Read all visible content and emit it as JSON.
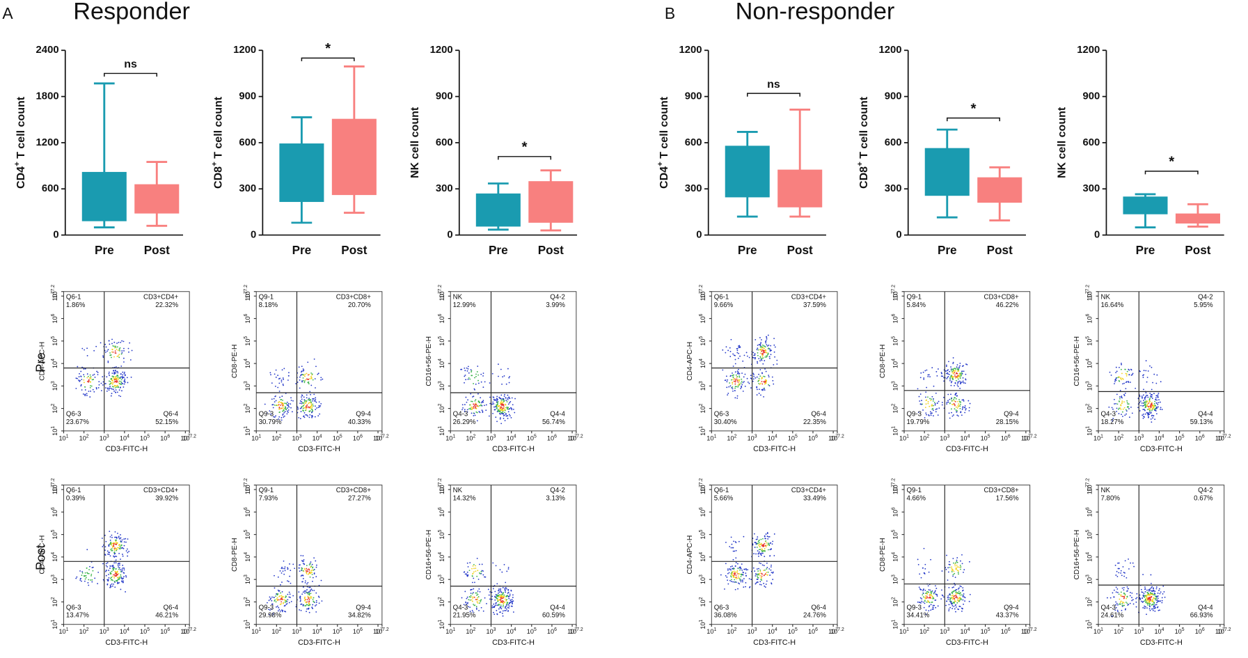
{
  "row_labels": [
    "Pre",
    "Post"
  ],
  "panels": [
    {
      "label": "A",
      "title": "Responder",
      "charts": [
        {
          "type": "box",
          "ylabel": {
            "main": "CD4",
            "sup": "+",
            "rest": " T cell count"
          },
          "ylim": [
            0,
            2400
          ],
          "yticks": [
            0,
            600,
            1200,
            1800,
            2400
          ],
          "categories": [
            "Pre",
            "Post"
          ],
          "boxes": [
            {
              "color": "#1a9bb0",
              "min": 100,
              "q1": 180,
              "q3": 820,
              "max": 1970
            },
            {
              "color": "#f8807f",
              "min": 120,
              "q1": 280,
              "q3": 660,
              "max": 950
            }
          ],
          "significance": {
            "label": "ns",
            "y": 2100
          }
        },
        {
          "type": "box",
          "ylabel": {
            "main": "CD8",
            "sup": "+",
            "rest": " T cell count"
          },
          "ylim": [
            0,
            1200
          ],
          "yticks": [
            0,
            300,
            600,
            900,
            1200
          ],
          "categories": [
            "Pre",
            "Post"
          ],
          "boxes": [
            {
              "color": "#1a9bb0",
              "min": 80,
              "q1": 215,
              "q3": 595,
              "max": 765
            },
            {
              "color": "#f8807f",
              "min": 145,
              "q1": 260,
              "q3": 755,
              "max": 1095
            }
          ],
          "significance": {
            "label": "*",
            "y": 1150
          }
        },
        {
          "type": "box",
          "ylabel": {
            "main": "NK cell count",
            "sup": "",
            "rest": ""
          },
          "ylim": [
            0,
            1200
          ],
          "yticks": [
            0,
            300,
            600,
            900,
            1200
          ],
          "categories": [
            "Pre",
            "Post"
          ],
          "boxes": [
            {
              "color": "#1a9bb0",
              "min": 35,
              "q1": 55,
              "q3": 270,
              "max": 335
            },
            {
              "color": "#f8807f",
              "min": 30,
              "q1": 80,
              "q3": 350,
              "max": 420
            }
          ],
          "significance": {
            "label": "*",
            "y": 510
          }
        }
      ],
      "flow": [
        [
          {
            "xlabel": "CD3-FITC-H",
            "ylabel": "CD4-APC-H",
            "xlim": [
              1,
              7.2
            ],
            "ylim": [
              1,
              7.2
            ],
            "ticks": [
              1,
              2,
              3,
              4,
              5,
              6,
              7,
              7.2
            ],
            "tick_base": "10",
            "gate": [
              3,
              3.8
            ],
            "quadrants": [
              {
                "name": "Q6-1",
                "value": 1.86,
                "label": "1.86%"
              },
              {
                "name": "CD3+CD4+",
                "value": 22.32,
                "label": "22.32%"
              },
              {
                "name": "Q6-3",
                "value": 23.67,
                "label": "23.67%"
              },
              {
                "name": "Q6-4",
                "value": 52.15,
                "label": "52.15%"
              }
            ]
          },
          {
            "xlabel": "CD3-FITC-H",
            "ylabel": "CD8-PE-H",
            "xlim": [
              1,
              7.2
            ],
            "ylim": [
              1,
              7.2
            ],
            "ticks": [
              1,
              2,
              3,
              4,
              5,
              6,
              7,
              7.2
            ],
            "tick_base": "10",
            "gate": [
              3,
              2.7
            ],
            "quadrants": [
              {
                "name": "Q9-1",
                "value": 8.18,
                "label": "8.18%"
              },
              {
                "name": "CD3+CD8+",
                "value": 20.7,
                "label": "20.70%"
              },
              {
                "name": "Q9-3",
                "value": 30.79,
                "label": "30.79%"
              },
              {
                "name": "Q9-4",
                "value": 40.33,
                "label": "40.33%"
              }
            ]
          },
          {
            "xlabel": "CD3-FITC-H",
            "ylabel": "CD16+56-PE-H",
            "xlim": [
              1,
              7.2
            ],
            "ylim": [
              1,
              7.2
            ],
            "ticks": [
              1,
              2,
              3,
              4,
              5,
              6,
              7,
              7.2
            ],
            "tick_base": "10",
            "gate": [
              3,
              2.7
            ],
            "quadrants": [
              {
                "name": "NK",
                "value": 12.99,
                "label": "12.99%"
              },
              {
                "name": "Q4-2",
                "value": 3.99,
                "label": "3.99%"
              },
              {
                "name": "Q4-3",
                "value": 26.29,
                "label": "26.29%"
              },
              {
                "name": "Q4-4",
                "value": 56.74,
                "label": "56.74%"
              }
            ]
          }
        ],
        [
          {
            "xlabel": "CD3-FITC-H",
            "ylabel": "CD4-APC-H",
            "xlim": [
              1,
              7.2
            ],
            "ylim": [
              1,
              7.2
            ],
            "ticks": [
              1,
              2,
              3,
              4,
              5,
              6,
              7,
              7.2
            ],
            "tick_base": "10",
            "gate": [
              3,
              3.8
            ],
            "quadrants": [
              {
                "name": "Q6-1",
                "value": 0.39,
                "label": "0.39%"
              },
              {
                "name": "CD3+CD4+",
                "value": 39.92,
                "label": "39.92%"
              },
              {
                "name": "Q6-3",
                "value": 13.47,
                "label": "13.47%"
              },
              {
                "name": "Q6-4",
                "value": 46.21,
                "label": "46.21%"
              }
            ]
          },
          {
            "xlabel": "CD3-FITC-H",
            "ylabel": "CD8-PE-H",
            "xlim": [
              1,
              7.2
            ],
            "ylim": [
              1,
              7.2
            ],
            "ticks": [
              1,
              2,
              3,
              4,
              5,
              6,
              7,
              7.2
            ],
            "tick_base": "10",
            "gate": [
              3,
              2.7
            ],
            "quadrants": [
              {
                "name": "Q9-1",
                "value": 7.93,
                "label": "7.93%"
              },
              {
                "name": "CD3+CD8+",
                "value": 27.27,
                "label": "27.27%"
              },
              {
                "name": "Q9-3",
                "value": 29.98,
                "label": "29.98%"
              },
              {
                "name": "Q9-4",
                "value": 34.82,
                "label": "34.82%"
              }
            ]
          },
          {
            "xlabel": "CD3-FITC-H",
            "ylabel": "CD16+56-PE-H",
            "xlim": [
              1,
              7.2
            ],
            "ylim": [
              1,
              7.2
            ],
            "ticks": [
              1,
              2,
              3,
              4,
              5,
              6,
              7,
              7.2
            ],
            "tick_base": "10",
            "gate": [
              3,
              2.7
            ],
            "quadrants": [
              {
                "name": "NK",
                "value": 14.32,
                "label": "14.32%"
              },
              {
                "name": "Q4-2",
                "value": 3.13,
                "label": "3.13%"
              },
              {
                "name": "Q4-3",
                "value": 21.95,
                "label": "21.95%"
              },
              {
                "name": "Q4-4",
                "value": 60.59,
                "label": "60.59%"
              }
            ]
          }
        ]
      ]
    },
    {
      "label": "B",
      "title": "Non-responder",
      "charts": [
        {
          "type": "box",
          "ylabel": {
            "main": "CD4",
            "sup": "+",
            "rest": " T cell count"
          },
          "ylim": [
            0,
            1200
          ],
          "yticks": [
            0,
            300,
            600,
            900,
            1200
          ],
          "categories": [
            "Pre",
            "Post"
          ],
          "boxes": [
            {
              "color": "#1a9bb0",
              "min": 120,
              "q1": 245,
              "q3": 580,
              "max": 670
            },
            {
              "color": "#f8807f",
              "min": 120,
              "q1": 180,
              "q3": 425,
              "max": 815
            }
          ],
          "significance": {
            "label": "ns",
            "y": 920
          }
        },
        {
          "type": "box",
          "ylabel": {
            "main": "CD8",
            "sup": "+",
            "rest": " T cell count"
          },
          "ylim": [
            0,
            1200
          ],
          "yticks": [
            0,
            300,
            600,
            900,
            1200
          ],
          "categories": [
            "Pre",
            "Post"
          ],
          "boxes": [
            {
              "color": "#1a9bb0",
              "min": 115,
              "q1": 255,
              "q3": 565,
              "max": 685
            },
            {
              "color": "#f8807f",
              "min": 95,
              "q1": 210,
              "q3": 375,
              "max": 440
            }
          ],
          "significance": {
            "label": "*",
            "y": 760
          }
        },
        {
          "type": "box",
          "ylabel": {
            "main": "NK cell count",
            "sup": "",
            "rest": ""
          },
          "ylim": [
            0,
            1200
          ],
          "yticks": [
            0,
            300,
            600,
            900,
            1200
          ],
          "categories": [
            "Pre",
            "Post"
          ],
          "boxes": [
            {
              "color": "#1a9bb0",
              "min": 50,
              "q1": 135,
              "q3": 250,
              "max": 265
            },
            {
              "color": "#f8807f",
              "min": 55,
              "q1": 75,
              "q3": 140,
              "max": 200
            }
          ],
          "significance": {
            "label": "*",
            "y": 415
          }
        }
      ],
      "flow": [
        [
          {
            "xlabel": "CD3-FITC-H",
            "ylabel": "CD4-APC-H",
            "xlim": [
              1,
              7.2
            ],
            "ylim": [
              1,
              7.2
            ],
            "ticks": [
              1,
              2,
              3,
              4,
              5,
              6,
              7,
              7.2
            ],
            "tick_base": "10",
            "gate": [
              3,
              3.8
            ],
            "quadrants": [
              {
                "name": "Q6-1",
                "value": 9.66,
                "label": "9.66%"
              },
              {
                "name": "CD3+CD4+",
                "value": 37.59,
                "label": "37.59%"
              },
              {
                "name": "Q6-3",
                "value": 30.4,
                "label": "30.40%"
              },
              {
                "name": "Q6-4",
                "value": 22.35,
                "label": "22.35%"
              }
            ]
          },
          {
            "xlabel": "CD3-FITC-H",
            "ylabel": "CD8-PE-H",
            "xlim": [
              1,
              7.2
            ],
            "ylim": [
              1,
              7.2
            ],
            "ticks": [
              1,
              2,
              3,
              4,
              5,
              6,
              7,
              7.2
            ],
            "tick_base": "10",
            "gate": [
              3,
              2.8
            ],
            "quadrants": [
              {
                "name": "Q9-1",
                "value": 5.84,
                "label": "5.84%"
              },
              {
                "name": "CD3+CD8+",
                "value": 46.22,
                "label": "46.22%"
              },
              {
                "name": "Q9-3",
                "value": 19.79,
                "label": "19.79%"
              },
              {
                "name": "Q9-4",
                "value": 28.15,
                "label": "28.15%"
              }
            ]
          },
          {
            "xlabel": "CD3-FITC-H",
            "ylabel": "CD16+56-PE-H",
            "xlim": [
              1,
              7.2
            ],
            "ylim": [
              1,
              7.2
            ],
            "ticks": [
              1,
              2,
              3,
              4,
              5,
              6,
              7,
              7.2
            ],
            "tick_base": "10",
            "gate": [
              3,
              2.75
            ],
            "quadrants": [
              {
                "name": "NK",
                "value": 16.64,
                "label": "16.64%"
              },
              {
                "name": "Q4-2",
                "value": 5.95,
                "label": "5.95%"
              },
              {
                "name": "Q4-3",
                "value": 18.27,
                "label": "18.27%"
              },
              {
                "name": "Q4-4",
                "value": 59.13,
                "label": "59.13%"
              }
            ]
          }
        ],
        [
          {
            "xlabel": "CD3-FITC-H",
            "ylabel": "CD4-APC-H",
            "xlim": [
              1,
              7.2
            ],
            "ylim": [
              1,
              7.2
            ],
            "ticks": [
              1,
              2,
              3,
              4,
              5,
              6,
              7,
              7.2
            ],
            "tick_base": "10",
            "gate": [
              3,
              3.8
            ],
            "quadrants": [
              {
                "name": "Q6-1",
                "value": 5.66,
                "label": "5.66%"
              },
              {
                "name": "CD3+CD4+",
                "value": 33.49,
                "label": "33.49%"
              },
              {
                "name": "Q6-3",
                "value": 36.08,
                "label": "36.08%"
              },
              {
                "name": "Q6-4",
                "value": 24.76,
                "label": "24.76%"
              }
            ]
          },
          {
            "xlabel": "CD3-FITC-H",
            "ylabel": "CD8-PE-H",
            "xlim": [
              1,
              7.2
            ],
            "ylim": [
              1,
              7.2
            ],
            "ticks": [
              1,
              2,
              3,
              4,
              5,
              6,
              7,
              7.2
            ],
            "tick_base": "10",
            "gate": [
              3,
              2.8
            ],
            "quadrants": [
              {
                "name": "Q9-1",
                "value": 4.66,
                "label": "4.66%"
              },
              {
                "name": "CD3+CD8+",
                "value": 17.56,
                "label": "17.56%"
              },
              {
                "name": "Q9-3",
                "value": 34.41,
                "label": "34.41%"
              },
              {
                "name": "Q9-4",
                "value": 43.37,
                "label": "43.37%"
              }
            ]
          },
          {
            "xlabel": "CD3-FITC-H",
            "ylabel": "CD16+56-PE-H",
            "xlim": [
              1,
              7.2
            ],
            "ylim": [
              1,
              7.2
            ],
            "ticks": [
              1,
              2,
              3,
              4,
              5,
              6,
              7,
              7.2
            ],
            "tick_base": "10",
            "gate": [
              3,
              2.75
            ],
            "quadrants": [
              {
                "name": "NK",
                "value": 7.8,
                "label": "7.80%"
              },
              {
                "name": "Q4-2",
                "value": 0.67,
                "label": "0.67%"
              },
              {
                "name": "Q4-3",
                "value": 24.61,
                "label": "24.61%"
              },
              {
                "name": "Q4-4",
                "value": 66.93,
                "label": "66.93%"
              }
            ]
          }
        ]
      ]
    }
  ]
}
